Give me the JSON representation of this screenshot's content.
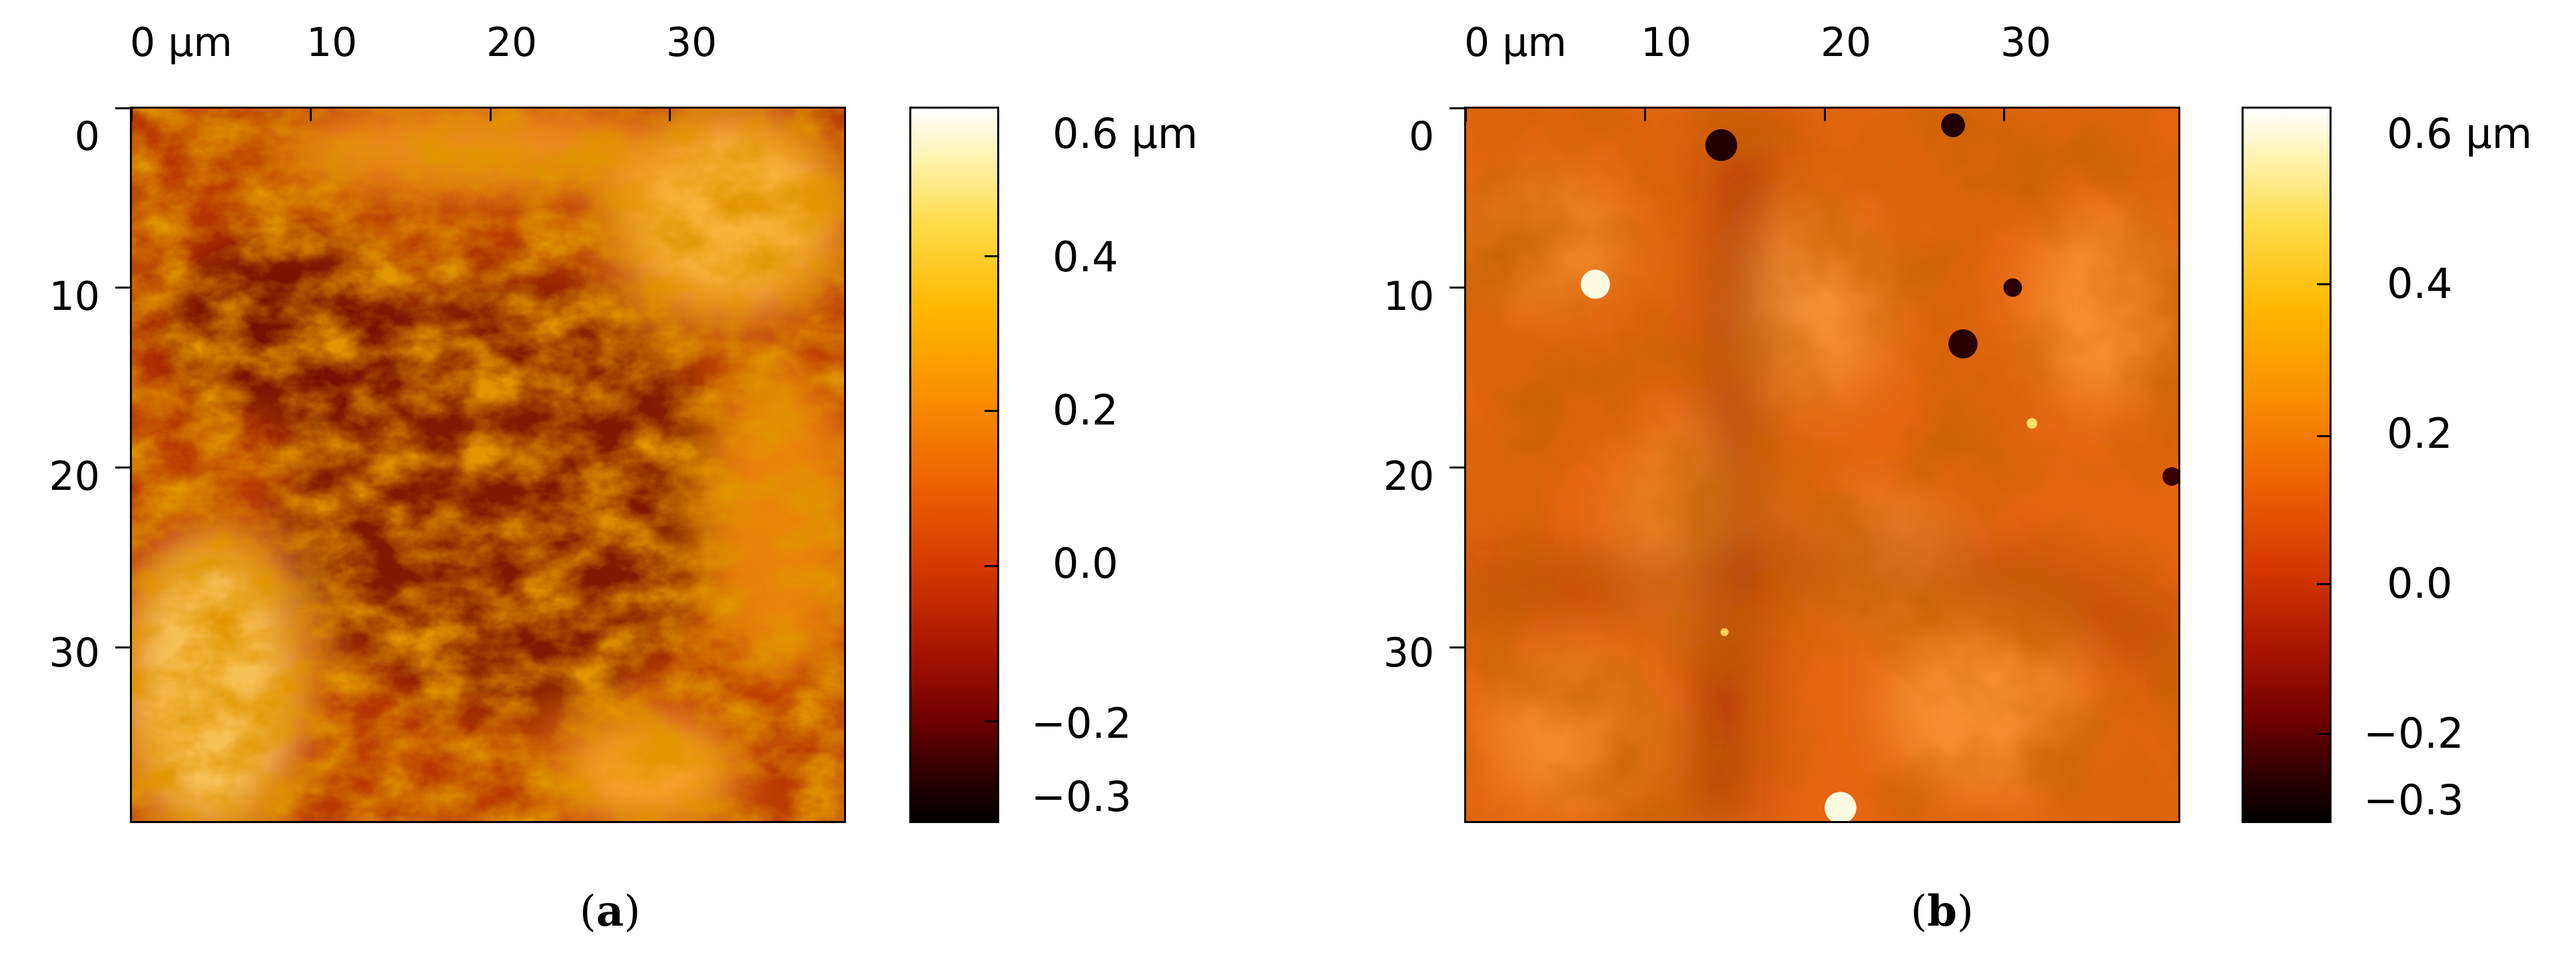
{
  "panels": [
    {
      "id": "a",
      "caption_open": "(",
      "caption_letter": "a",
      "caption_close": ")",
      "x_ticks": [
        "0 µm",
        "10",
        "20",
        "30"
      ],
      "y_ticks": [
        "0",
        "10",
        "20",
        "30"
      ],
      "colorbar_ticks": [
        "0.6 µm",
        "0.4",
        "0.2",
        "0.0",
        "−0.2",
        "−0.3"
      ]
    },
    {
      "id": "b",
      "caption_open": "(",
      "caption_letter": "b",
      "caption_close": ")",
      "x_ticks": [
        "0 µm",
        "10",
        "20",
        "30"
      ],
      "y_ticks": [
        "0",
        "10",
        "20",
        "30"
      ],
      "colorbar_ticks": [
        "0.6 µm",
        "0.4",
        "0.2",
        "0.0",
        "−0.2",
        "−0.3"
      ]
    }
  ],
  "colormap": [
    "#000000",
    "#6e0000",
    "#d63a00",
    "#f99000",
    "#ffdc4a",
    "#ffffff"
  ]
}
